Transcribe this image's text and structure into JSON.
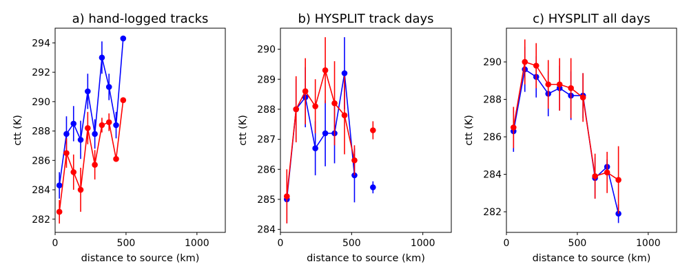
{
  "chart_data": [
    {
      "type": "line",
      "title": "a) hand-logged tracks",
      "xlabel": "distance to source (km)",
      "ylabel": "ctt (K)",
      "xlim": [
        0,
        1200
      ],
      "ylim": [
        281.1,
        295.0
      ],
      "xticks": [
        0,
        500,
        1000
      ],
      "yticks": [
        282,
        284,
        286,
        288,
        290,
        292,
        294
      ],
      "grid": false,
      "series": [
        {
          "name": "blue",
          "color": "#0000ff",
          "x": [
            30,
            80,
            130,
            180,
            230,
            280,
            330,
            380,
            430,
            480
          ],
          "y": [
            284.3,
            287.8,
            288.5,
            287.4,
            290.7,
            287.8,
            293.0,
            291.0,
            288.4,
            294.3
          ],
          "err": [
            0.9,
            1.2,
            1.2,
            1.3,
            1.2,
            1.0,
            1.1,
            0.9,
            0.9,
            0.0
          ]
        },
        {
          "name": "red",
          "color": "#ff0000",
          "x": [
            30,
            80,
            130,
            180,
            230,
            280,
            330,
            380,
            430,
            480
          ],
          "y": [
            282.5,
            286.5,
            285.2,
            284.0,
            288.2,
            285.7,
            288.4,
            288.6,
            286.1,
            290.1
          ],
          "err": [
            0.8,
            1.0,
            1.2,
            1.5,
            1.1,
            1.0,
            0.5,
            0.6,
            0.0,
            0.0
          ]
        }
      ]
    },
    {
      "type": "line",
      "title": "b) HYSPLIT track days",
      "xlabel": "distance to source (km)",
      "ylabel": "ctt (K)",
      "xlim": [
        0,
        1200
      ],
      "ylim": [
        283.9,
        290.7
      ],
      "xticks": [
        0,
        500,
        1000
      ],
      "yticks": [
        284,
        285,
        286,
        287,
        288,
        289,
        290
      ],
      "grid": false,
      "series": [
        {
          "name": "blue",
          "color": "#0000ff",
          "x": [
            45,
            110,
            175,
            245,
            315,
            380,
            450,
            520,
            650
          ],
          "y": [
            285.0,
            288.0,
            288.4,
            286.7,
            287.2,
            287.2,
            289.2,
            285.8,
            285.4
          ],
          "err": [
            0.8,
            1.0,
            1.0,
            0.9,
            1.1,
            1.0,
            1.2,
            0.9,
            0.2
          ],
          "connect": 8
        },
        {
          "name": "red",
          "color": "#ff0000",
          "x": [
            45,
            110,
            175,
            245,
            315,
            380,
            450,
            520,
            650
          ],
          "y": [
            285.1,
            288.0,
            288.6,
            288.1,
            289.3,
            288.2,
            287.8,
            286.3,
            287.3
          ],
          "err": [
            0.9,
            1.1,
            1.1,
            0.9,
            1.1,
            1.4,
            1.3,
            0.5,
            0.3
          ],
          "connect": 8
        }
      ]
    },
    {
      "type": "line",
      "title": "c) HYSPLIT all days",
      "xlabel": "distance to source (km)",
      "ylabel": "ctt (K)",
      "xlim": [
        0,
        1200
      ],
      "ylim": [
        280.9,
        291.8
      ],
      "xticks": [
        0,
        500,
        1000
      ],
      "yticks": [
        282,
        284,
        286,
        288,
        290
      ],
      "grid": false,
      "series": [
        {
          "name": "blue",
          "color": "#0000ff",
          "x": [
            50,
            130,
            210,
            295,
            375,
            455,
            540,
            625,
            710,
            790
          ],
          "y": [
            286.3,
            289.6,
            289.2,
            288.3,
            288.6,
            288.2,
            288.2,
            283.8,
            284.4,
            281.9
          ],
          "err": [
            1.1,
            1.2,
            1.1,
            1.2,
            1.2,
            1.3,
            1.2,
            1.1,
            0.4,
            0.5
          ]
        },
        {
          "name": "red",
          "color": "#ff0000",
          "x": [
            50,
            130,
            210,
            295,
            375,
            455,
            540,
            625,
            710,
            790
          ],
          "y": [
            286.5,
            290.0,
            289.8,
            288.8,
            288.8,
            288.6,
            288.1,
            283.9,
            284.1,
            283.7
          ],
          "err": [
            1.1,
            1.2,
            1.2,
            1.3,
            1.4,
            1.6,
            1.3,
            1.2,
            1.1,
            1.8
          ]
        }
      ]
    }
  ]
}
